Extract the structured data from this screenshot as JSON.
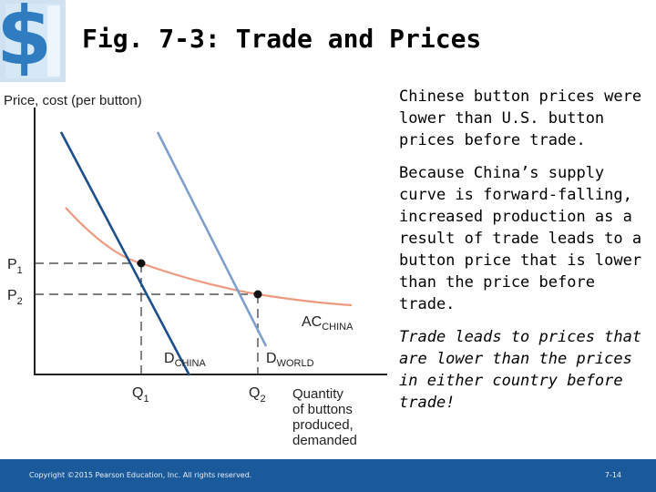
{
  "slide": {
    "title": "Fig. 7-3: Trade and Prices",
    "logo_icon": "dollar-sign-logo-icon"
  },
  "chart": {
    "y_axis_label": "Price, cost (per button)",
    "x_axis_label": [
      "Quantity",
      "of buttons",
      "produced,",
      "demanded"
    ],
    "p1": {
      "main": "P",
      "sub": "1"
    },
    "p2": {
      "main": "P",
      "sub": "2"
    },
    "q1": {
      "main": "Q",
      "sub": "1"
    },
    "q2": {
      "main": "Q",
      "sub": "2"
    },
    "ac_label": {
      "main": "AC",
      "sub": "CHINA"
    },
    "d_china_label": {
      "main": "D",
      "sub": "CHINA"
    },
    "d_world_label": {
      "main": "D",
      "sub": "WORLD"
    },
    "colors": {
      "d_china": "#1c4e8c",
      "d_world": "#7f9fcd",
      "ac_china": "#ee9a7e",
      "axis": "#222222",
      "dashed": "#333333"
    }
  },
  "text_blocks": [
    "Chinese button prices were lower than U.S. button prices before trade.",
    "Because China’s supply curve is forward-falling, increased production as a result of trade leads to a button price that is lower than the price before trade.",
    "Trade leads to prices that are lower than the prices in either country before trade!"
  ],
  "footer": {
    "copyright": "Copyright ©2015 Pearson Education, Inc. All rights reserved.",
    "page_number": "7-14",
    "bg_color": "#1b5a9a"
  }
}
